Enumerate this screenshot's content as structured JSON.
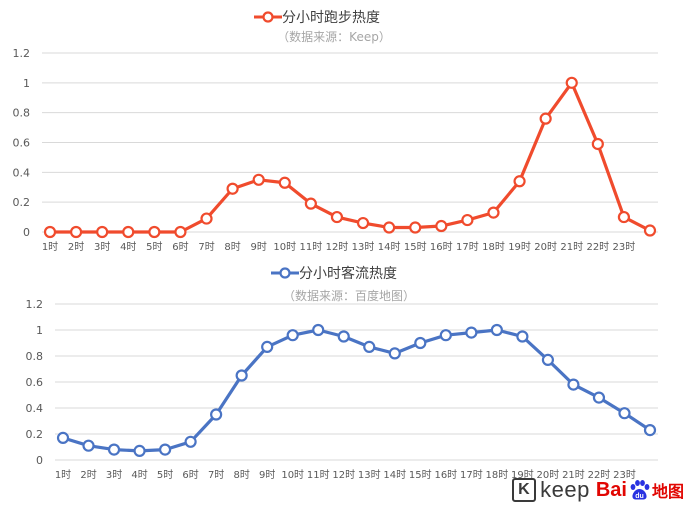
{
  "chart_data": [
    {
      "type": "line",
      "title": "分小时跑步热度",
      "subtitle": "（数据来源：Keep）",
      "color": "#f04b2d",
      "categories": [
        "1时",
        "2时",
        "3时",
        "4时",
        "5时",
        "6时",
        "7时",
        "8时",
        "9时",
        "10时",
        "11时",
        "12时",
        "13时",
        "14时",
        "15时",
        "16时",
        "17时",
        "18时",
        "19时",
        "20时",
        "21时",
        "22时",
        "23时",
        ""
      ],
      "series": [
        {
          "name": "分小时跑步热度",
          "values": [
            0,
            0,
            0,
            0,
            0,
            0,
            0.09,
            0.29,
            0.35,
            0.33,
            0.19,
            0.1,
            0.06,
            0.03,
            0.03,
            0.04,
            0.08,
            0.13,
            0.34,
            0.76,
            1.0,
            0.59,
            0.1,
            0.01
          ]
        }
      ],
      "ylim": [
        0,
        1.2
      ],
      "yticks": [
        "0",
        "0.2",
        "0.4",
        "0.6",
        "0.8",
        "1",
        "1.2"
      ],
      "grid": true,
      "legend": "top-center"
    },
    {
      "type": "line",
      "title": "分小时客流热度",
      "subtitle": "（数据来源：百度地图）",
      "color": "#4a74c4",
      "categories": [
        "1时",
        "2时",
        "3时",
        "4时",
        "5时",
        "6时",
        "7时",
        "8时",
        "9时",
        "10时",
        "11时",
        "12时",
        "13时",
        "14时",
        "15时",
        "16时",
        "17时",
        "18时",
        "19时",
        "20时",
        "21时",
        "22时",
        "23时",
        ""
      ],
      "series": [
        {
          "name": "分小时客流热度",
          "values": [
            0.17,
            0.11,
            0.08,
            0.07,
            0.08,
            0.14,
            0.35,
            0.65,
            0.87,
            0.96,
            1.0,
            0.95,
            0.87,
            0.82,
            0.9,
            0.96,
            0.98,
            1.0,
            0.95,
            0.77,
            0.58,
            0.48,
            0.36,
            0.23
          ]
        }
      ],
      "ylim": [
        0,
        1.2
      ],
      "yticks": [
        "0",
        "0.2",
        "0.4",
        "0.6",
        "0.8",
        "1",
        "1.2"
      ],
      "grid": true,
      "legend": "top-center"
    }
  ],
  "logos": {
    "keep_text": "keep",
    "keep_mark": "K",
    "baidu_left": "Bai",
    "baidu_right": "du",
    "baidu_map": "地图",
    "baidu_paw_icon": "paw-icon"
  }
}
